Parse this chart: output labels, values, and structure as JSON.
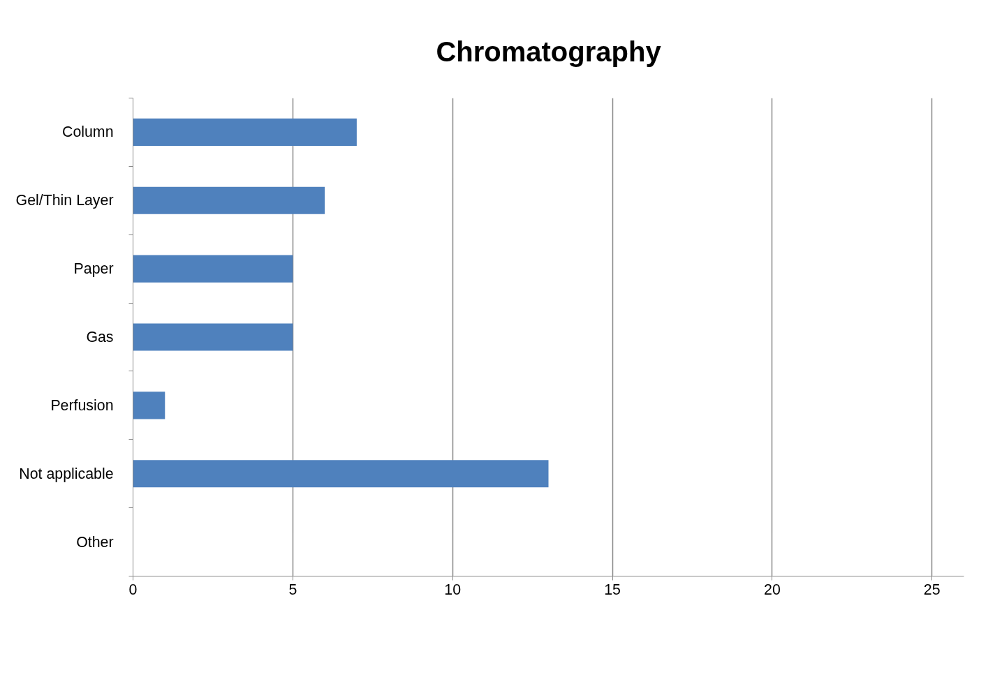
{
  "chart_data": {
    "type": "bar",
    "orientation": "horizontal",
    "title": "Chromatography",
    "categories": [
      "Column",
      "Gel/Thin Layer",
      "Paper",
      "Gas",
      "Perfusion",
      "Not applicable",
      "Other"
    ],
    "values": [
      7,
      6,
      5,
      5,
      1,
      13,
      0
    ],
    "color": "#4f81bd",
    "xlim": [
      0,
      26
    ],
    "xticks": [
      0,
      5,
      10,
      15,
      20,
      25
    ],
    "grid": "x"
  }
}
